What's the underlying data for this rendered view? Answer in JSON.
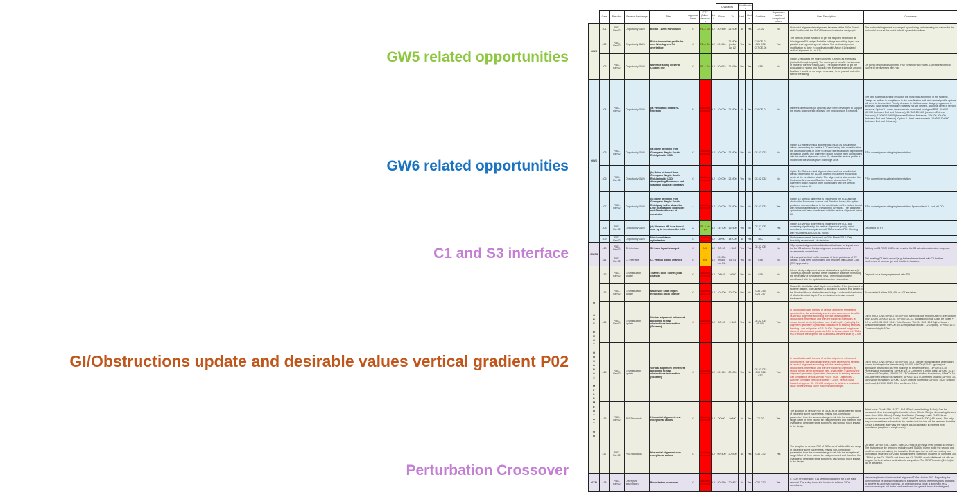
{
  "headings": [
    {
      "text": "GW5 related opportunities",
      "color": "#8dc63f"
    },
    {
      "text": "GW6 related opportunities",
      "color": "#1a73c0"
    },
    {
      "text": "C1 and S3 interface",
      "color": "#c47fd5"
    },
    {
      "text": "GI/Obstructions update and desirable values vertical gradient P02",
      "color": "#c0561b"
    },
    {
      "text": "Perturbation Crossover",
      "color": "#c47fd5"
    }
  ],
  "colors": {
    "gw5_bg": "#eef1e2",
    "gw6_bg": "#dcedf5",
    "c1s3_bg": "#e5e1ef",
    "gi_bg": "#eeede2",
    "prt_green": "#92d050",
    "prt_red": "#ff0000",
    "prt_amber": "#ffc000"
  },
  "table": {
    "header_groups": {
      "chainages": "Chainages",
      "modification": "Modification"
    },
    "columns": [
      "Gate",
      "Baseline",
      "Reason for change",
      "Title",
      "Approval Level",
      "PRT (Allow / decision)",
      "Lot",
      "From",
      "To",
      "Vert.",
      "Horiz.",
      "Conflicts",
      "Departures and/or exceptional values",
      "Brief Description",
      "Comments"
    ],
    "groups": [
      {
        "label": "GW5",
        "rows": 3,
        "bg": "#eef1e2"
      },
      {
        "label": "GW6",
        "rows": 6,
        "bg": "#dcedf5"
      },
      {
        "label": "C1 S3",
        "rows": 2,
        "bg": "#e5e1ef"
      },
      {
        "label": "G I / O B S T R U C T I O N S & P 0 2 I M P L E M E N T A T I O N",
        "rows": 6,
        "bg": "#eeede2"
      },
      {
        "label": "OTH",
        "rows": 1,
        "bg": "#e5e1ef"
      }
    ],
    "rows": [
      {
        "gate": "401",
        "baseline": "P503-Rev02",
        "reason": "Opportunity GW5",
        "title": "Bill 8D - 100m Portal Shift",
        "approval": "C",
        "prt": "P1-1 Go",
        "prt_color": "#92d050",
        "lot": "L2",
        "from": "20+450",
        "to": "21+500",
        "vert": "No",
        "horiz": "Yes",
        "conflicts": "CE-02",
        "departures": "No",
        "desc": "Horizontal alignment re-alignment because of the 100m Portal shift. Conflict with the SHD Prime new horizontal design pkt.",
        "desc_red": false,
        "comments": "The horizontal alignment is changed by widening or decreasing the values for the horizontal curve at the portal in both up and down lines."
      },
      {
        "gate": "402",
        "baseline": "P503-Rev02",
        "reason": "Opportunity GW5",
        "title": "Raise the vertical profile for new Woodsgrove Rd overbridge",
        "approval": "C",
        "prt": "P1-1 Go",
        "prt_color": "#92d050",
        "lot": "L2",
        "from": "20+840",
        "to": "21+800 (end of Lot L2)",
        "vert": "Yes",
        "horiz": "No",
        "conflicts": "C36 CE-01 C26 C06 C57 CE-06",
        "departures": "Yes",
        "desc": "The vertical profile is raised to get the required headroom at Woodsgrove Rd bridge. Both the cuttings and siding layout are parallel sharing existing and values. The vertical alignment modification is done in coordination with Action 61 (updated vertical alignment in Lot C1).",
        "desc_red": false,
        "comments": ""
      },
      {
        "gate": "403",
        "baseline": "P503-Rev02",
        "reason": "Opportunity GW5",
        "title": "Move the siding closer to Chiltern line",
        "approval": "C",
        "prt": "P1-1 Go",
        "prt_color": "#92d050",
        "lot": "L2",
        "from": "20+615",
        "to": "21+950",
        "vert": "Yes",
        "horiz": "Yes",
        "conflicts": "C58",
        "departures": "No",
        "desc": "Option 2 relocates the siding closer to Chiltern as eventually (footpath through impact). The consequent benefit: the increase of profile of the new track (AVE). The option enable to get the evacuation of siding and traction from earthwork the total amount. Besides it would be no longer necessary to be placed under the slab of the siding.",
        "desc_red": false,
        "comments": "On going design and support to HS2 Network Rail review. Operational vertical curves to be reviewed with Rail."
      },
      {
        "gate": "404",
        "baseline": "P503-Rev02",
        "reason": "Opportunity GW6",
        "title": "(a) Ventilation Shafts re-redesign",
        "approval": "B",
        "prt": "Awaiting decision",
        "prt_color": "#ff0000",
        "lot": "L2",
        "from": "10+000",
        "to": "21+800",
        "vert": "No",
        "horiz": "Yes",
        "conflicts": "C36 CE-01",
        "departures": "No",
        "desc": "Different dimensions (of options) have been developed to support the shafts optioneering process. The final decision is pending.",
        "desc_red": false,
        "comments": "The vent shaft has a huge impact in the horizontal alignment of the scheme. Design as well as in compliance in the coordination with civil vertical profile options will need to be checked. Timely decision is vital to ensure design programme is achieved. New tunnel ventilation strategy not yet defined. Approval Level B needed because: Option 1 - worst case scenario compared to original PNS. 10+000-10+300 (between Exit and Entrance); 15+000-15+400 (between Exit and Entrance); 17+200-17+600 (between Exit and Entrance); 20+100-20+400 (between Exit and Entrance). Option 2 - best case scenario. 10+700-10+950 (between Exit and Entrance)."
      },
      {
        "gate": "405",
        "baseline": "P503-Rev02",
        "reason": "Opportunity GW6",
        "title": "(a) Raise of tunnel from Greenpark Way to South Ruislip inside LOD",
        "approval": "C",
        "prt": "Awaiting decision",
        "prt_color": "#ff0000",
        "lot": "L2",
        "from": "10+000",
        "to": "21+800",
        "vert": "Yes",
        "horiz": "No",
        "conflicts": "CE-02 C32",
        "departures": "No",
        "desc": "Option 1a: Raise vertical alignment as much as possible but without exceeding the vertical LOD and taking into consideration the obstruction plan in order to reduce the excavation depth at the ventilation shafts. The alignment option has not been coordinated with the vertical alignment action 60, where the vertical profile is modified at the Woodsgrove Rd bridge area.",
        "desc_red": false,
        "comments": "PT is currently evaluating implementation."
      },
      {
        "gate": "406",
        "baseline": "P503-Rev02",
        "reason": "Opportunity GW6",
        "title": "(b) Raise of tunnel from Greenpark Way to South Ruislip inside LOD disregarding Rodmoore and Stanford house at constraint",
        "approval": "C",
        "prt": "Awaiting decision",
        "prt_color": "#ff0000",
        "lot": "L2",
        "from": "10+000",
        "to": "21+800",
        "vert": "Yes",
        "horiz": "No",
        "conflicts": "CE-02 C32",
        "departures": "No",
        "desc": "Option 1b: Raise vertical alignment as much as possible but without exceeding the LOD in order to reduce the excavation depth at the ventilation shafts. The alignment is also avoided the Rodmoore Avenue and Stanford house obstruction. The alignment option has not been coordinated with the vertical alignment action 60.",
        "desc_red": false,
        "comments": "PT is currently evaluating implementation."
      },
      {
        "gate": "407",
        "baseline": "P503-Rev02",
        "reason": "Opportunity GW6",
        "title": "(c) Raise of tunnel from Greenpark Way to South Ruislip up to 2m above the LOD disregarding Rodmoore and Stanford house at constraint",
        "approval": "A",
        "prt": "Awaiting decision",
        "prt_color": "#ff0000",
        "lot": "L2",
        "from": "10+000",
        "to": "21+800",
        "vert": "Yes",
        "horiz": "No",
        "conflicts": "CE-02 C32",
        "departures": "Yes",
        "desc": "Option 1c: vertical alignment is challenging the LOD and the obstruction Rodmoore Avenue and Stanford house; the option produces non-compliance in the coordination of the ballast tunnel with new portal transitions (new/tunnel overlaps). The alignment option has not been coordinated with the vertical alignment action 60.",
        "desc_red": false,
        "comments": "PT is currently evaluating implementation. Approval level A - out of LOD"
      },
      {
        "gate": "408",
        "baseline": "P503-Rev02",
        "reason": "Opportunity GW6",
        "title": "(d) Minimise HE Area tunnel near up to 2m above the LOD",
        "approval": "A",
        "prt": "P1-1 No go",
        "prt_color": "#92d050",
        "lot": "L2",
        "from": "14+700",
        "to": "16+400",
        "vert": "Yes",
        "horiz": "No",
        "conflicts": "CE-02 CE-01",
        "departures": "Yes",
        "desc": "Option 1d: vertical alignment is challenging the LOD and worsening significantly the vertical alignment quality, which compliance are incompliance with TADs version P02. Meeting with HS2 trains 30/03/2018 - no go.",
        "desc_red": false,
        "comments": "Discarded by PT"
      },
      {
        "gate": "409",
        "baseline": "P503-Rev02",
        "reason": "Opportunity GW6",
        "title": "New tunnel dann optimisation",
        "approval": "C",
        "prt": "Awaiting decision",
        "prt_color": "#ff0000",
        "lot": "L2",
        "from": "08+00",
        "to": "14+000",
        "vert": "No",
        "horiz": "Yes",
        "conflicts": "TBC",
        "departures": "No",
        "desc": "Under assessment. Instructed on 26th March 2018. Only feasibility assessment. No decision.",
        "desc_red": false,
        "comments": ""
      },
      {
        "gate": "410",
        "baseline": "P503-Rev02",
        "reason": "S3 interface",
        "title": "S3 track layout changed",
        "approval": "C",
        "prt": "N/A",
        "prt_color": "#ffc000",
        "lot": "L2",
        "from": "00+00",
        "to": "1+400",
        "vert": "Yes",
        "horiz": "Yes",
        "conflicts": "CE-02 CE-01",
        "departures": "No",
        "desc": "S3 proposed alignment modifications that have an impact over the Lot C1 scheme. Design alignment coordination and assessments undertaken.",
        "desc_red": false,
        "comments": "Waiting on C1 ROM KOE to aid resolve the S3 lateral consideration proposal."
      },
      {
        "gate": "411",
        "baseline": "P503-Rev02",
        "reason": "C1 interface",
        "title": "C1 vertical profile changed",
        "approval": "C",
        "prt": "N/A",
        "prt_color": "#ffc000",
        "lot": "L2",
        "from": "20+800 (end of Lot C1)",
        "to": "Lot C1",
        "vert": "Yes",
        "horiz": "No",
        "conflicts": "C58",
        "departures": "No",
        "desc": "C1 changed vertical profile because of tie-in point near of CV viaduct. It has been coordinated and recorded with Action C58 (SVS approach).",
        "desc_red": false,
        "comments": "Still awaiting C1 tie-in record (e.g. file has been shared with C1 for their conference of number (jc) and final tie-in location."
      },
      {
        "gate": "412",
        "baseline": "P503-Rev02",
        "reason": "GI/Obstruction update",
        "title": "Thames cone Tunnel (local change)",
        "approval": "C",
        "prt": "Awaiting decision",
        "prt_color": "#ff0000",
        "lot": "L2",
        "from": "08+45",
        "to": "2+650",
        "vert": "Yes",
        "horiz": "No",
        "conflicts": "C08",
        "departures": "No",
        "desc": "Interim design alignment across obstructions by full banners (ie Tunnels) Objective: achieve better clearance distance increasing the necessary of clearance to SAA. The vertical profile is coordinated with the updated obstruction information.",
        "desc_red": false,
        "comments": "Depends on a timely agreement with TW."
      },
      {
        "gate": "413",
        "baseline": "P503-Rev02",
        "reason": "GI/Obstruction update",
        "title": "Moatsville Shaft Depth Reduction (local change)",
        "approval": "C",
        "prt": "Awaiting decision",
        "prt_color": "#ff0000",
        "lot": "L2",
        "from": "10+100",
        "to": "10+200",
        "vert": "Yes",
        "horiz": "No",
        "conflicts": "C36 C55 C26 C57",
        "departures": "No",
        "desc": "Moatsville Ventilation shaft depth exceeded by 3.9m (compared to scheme design). The updated GI guidance is closed end aimed to the Stanford House obstruction and brings a substantial reduction of Moatsville shaft depth. The vertical curve is also moved backwards.",
        "desc_red": false,
        "comments": "Superseded if either 405, 406 or 407 are taken."
      },
      {
        "gate": "414",
        "baseline": "P503-Rev02",
        "reason": "GI/Obstruction update",
        "title": "Vertical alignment refinement according to new obstructions information (Scheme)",
        "approval": "C",
        "prt": "Awaiting decision",
        "prt_color": "#ff0000",
        "lot": "L2",
        "from": "00+00",
        "to": "9+400",
        "vert": "Yes",
        "horiz": "No",
        "conflicts": "CE-02 CE-01 C08",
        "departures": "Yes",
        "desc": "In coordination with the rest of vertical alignment refinement opportunities, the vertical alignment under assessment benefits its vertical alignment according with the latest updated obstructions information and with the following objectives: a) reduce tunnel depth; b) reduce vent. shaft depth; c) simplify the alignment geometry; d) maintain clearances to existing services. Pending Lane mitigation at 3.5. 9+400. Engineered long tunnel element with constant gradients 0.4% to be compliant with TADs P02. Reduce the depth of the Gurnards Lane vent shaft by 2.0m.",
        "desc_red": true,
        "comments": "OBSTRUCTIONS IMPACTED: 04+000: Metrolink Bus Proven Unit no. 49b Bottom only: 10.0m. 04+000: 10-01. 04+000: 10-11 - Bridges/pull/Vital Could be closer + 0.5 m to CD. 04+000: 10-4 - Toile Gurnard Vint. 04+000: 10-2 Alpha House - Shallow foundation. 04+000: 10-10 Royal Mail Mount - 12 Ongoing. 04+000: 10-5 - Confirmed depth 6.0m."
      },
      {
        "gate": "415",
        "baseline": "P503-Rev02",
        "reason": "GI/Obstruction update",
        "title": "Vertical alignment refinement according to new obstructions information (Scheme)",
        "approval": "C",
        "prt": "Awaiting decision",
        "prt_color": "#ff0000",
        "lot": "L2",
        "from": "09+400",
        "to": "20+800",
        "vert": "Yes",
        "horiz": "No",
        "conflicts": "CE-02 C32 C06 C26 C57",
        "departures": "Yes",
        "desc": "In coordination with the rest of vertical alignment refinement opportunities, the vertical alignment under assessment benefits its vertical alignment according with the latest updated obstructions information and with the following objectives: a) reduce tunnel depth; b) reduce vent. shaft depth; c) simplify the alignment geometry; d) maintain clearances to existing services. Get compliance versus vertical P02 of TADs. Objectives: - Achieve compliant vertical gradients < 2.5%. Vertical curve located at approx. Ch. 09+800 designed to achieve a desirable value for the vertical curve in combination length.",
        "desc_red": true,
        "comments": "OBSTRUCTIONS IMPACTED: 04+000: 10-4 - Ignore (not applicable obstruction; current buildings to be demolished). 04+000-04+000 (FEVE): Ignore (not applicable obstruction; current buildings to be demolished). 18+000: 10-10 Piles/shallow foundations; 18+000: 10-11 Confirmed 6.0m to piles; 18+000: 10-12 Confirmed 6.0m piles; 18+000: 10-13 Confirmed shallow foundations; 18+000: 10-15 Confirmed shallow foundations; 18+000: 10-17 Confirmed shallow; 18+000: 10-18 Shallow foundation; 18+000: 10-20 Shallow confirmed; 18+000: 10-25 Shallow confirmed; 18+000: 10-27 Piles confirmed 9.0m."
      },
      {
        "gate": "416",
        "baseline": "P503-Rev02",
        "reason": "P02 Standards",
        "title": "Horizontal alignment new exceptional values",
        "approval": "C",
        "prt": "Awaiting decision",
        "prt_color": "#ff0000",
        "lot": "L2",
        "from": "00+00",
        "to": "9+400",
        "vert": "No",
        "horiz": "Yes",
        "conflicts": "CE-02",
        "departures": "Yes",
        "desc": "The adoption of version P02 of TADs, as of unlike different range of values for some parameters, makes non-compliance parameters from the scheme design to fall into the exceptional range. Most of them cannot be easily removed and therefore the leverage or desirable range but others can without much impact in the design.",
        "desc_red": false,
        "comments": "Worst case: Ch 04+780. R=2C - R=1850m/s (max limiting: R=1m). Can be increased either increasing the transition (from 80m to 95m) or decreasing the cant value (from 80 to 68mm). Ruislip Bus Station (Passage mall): R=2C: three exceptional values at Ch 04+00, 1+100, 1+900 and 3+100 (=95 mm/s). The only way to remove them is to reduce the cant so that the line will be removed from the EA/DA 1 available. May vary the values could rationalise in meeting new compliance (length of a single curve)."
      },
      {
        "gate": "417",
        "baseline": "P503-Rev02",
        "reason": "P02 Standards",
        "title": "Horizontal alignment new exceptional values",
        "approval": "C",
        "prt": "Awaiting decision",
        "prt_color": "#ff0000",
        "lot": "L2",
        "from": "09+400",
        "to": "20+800",
        "vert": "No",
        "horiz": "Yes",
        "conflicts": "C36 C32",
        "departures": "Yes",
        "desc": "The adoption of version P02 of TADs, as of unlike different range of values for some parameters, makes non-compliance parameters from the scheme design to fall into the exceptional range. Most of them cannot be easily removed and therefore the leverage or desirable range but others can without much impact in the design.",
        "desc_red": false,
        "comments": "Up case: 18+900 (DE-14/km). Max=2.0 (max of 40 mm/s (max limiting 45 mm/s)). The first one can be removed reducing cant 75/60 to 60mm while the second one could be removed making the transition 8m longer, but so with an existing non compliance regarding L/R2 and fan alignment. Maximum gradient for complete 360 - 35%: Up line Ch 10+800 and down line Ch 10+850 as also flattened roll-offs as long as the tie-in values destination is compatible. The MRCR version (10.0m) is flat or designed."
      },
      {
        "gate": "418",
        "baseline": "P503-Rev02",
        "reason": "Other (see description)",
        "title": "Perturbation crossover",
        "approval": "C",
        "prt": "Awaiting decision",
        "prt_color": "#ff0000",
        "lot": "L2",
        "from": "20+150",
        "to": "20+857",
        "vert": "No",
        "horiz": "Yes",
        "conflicts": "C36 C32",
        "departures": "Yes",
        "desc": "C 1000 SP Extension: 014 Metrology adapted for 5.5m track removal. The siding turnout is located to achieve TADs compliance.",
        "desc_red": false,
        "comments": "New exceptional value in vertical alignment TADs Version P02. Regarding the tunnel turnout vs crossover advanced slabs their turnout elements (toes and tails) to achieve an approved fairness. As an exceptional value is achieved. HS2 turnouts analogue not (to be confirmed once the generic turnout is designed)."
      }
    ]
  }
}
